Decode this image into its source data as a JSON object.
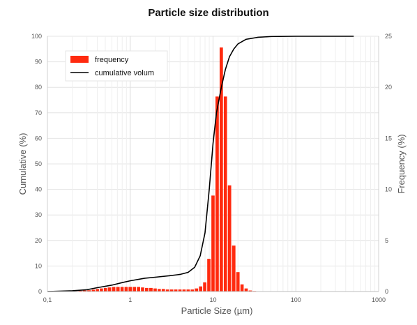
{
  "chart_data": {
    "type": "bar",
    "title": "Particle size distribution",
    "xlabel": "Particle Size (µm)",
    "ylabel_left": "Cumulative (%)",
    "ylabel_right": "Frequency (%)",
    "x_scale": "log",
    "xlim": [
      0.1,
      1000
    ],
    "ylim_left": [
      0,
      100
    ],
    "ylim_right": [
      0,
      25
    ],
    "x_ticks": [
      {
        "value": 0.1,
        "label": "0,1"
      },
      {
        "value": 1,
        "label": "1"
      },
      {
        "value": 10,
        "label": "10"
      },
      {
        "value": 100,
        "label": "100"
      },
      {
        "value": 1000,
        "label": "1000"
      }
    ],
    "y_left_ticks": [
      0,
      10,
      20,
      30,
      40,
      50,
      60,
      70,
      80,
      90,
      100
    ],
    "y_right_ticks": [
      0,
      5,
      10,
      15,
      20,
      25
    ],
    "grid": true,
    "legend_position": "top-left",
    "series": [
      {
        "name": "frequency",
        "type": "bar",
        "axis": "right",
        "color": "#ff2a0f",
        "points": [
          {
            "x": 0.22,
            "y": 0.05
          },
          {
            "x": 0.25,
            "y": 0.08
          },
          {
            "x": 0.28,
            "y": 0.1
          },
          {
            "x": 0.32,
            "y": 0.12
          },
          {
            "x": 0.36,
            "y": 0.18
          },
          {
            "x": 0.4,
            "y": 0.25
          },
          {
            "x": 0.45,
            "y": 0.3
          },
          {
            "x": 0.5,
            "y": 0.35
          },
          {
            "x": 0.56,
            "y": 0.4
          },
          {
            "x": 0.63,
            "y": 0.45
          },
          {
            "x": 0.71,
            "y": 0.45
          },
          {
            "x": 0.8,
            "y": 0.45
          },
          {
            "x": 0.89,
            "y": 0.45
          },
          {
            "x": 1.0,
            "y": 0.45
          },
          {
            "x": 1.12,
            "y": 0.45
          },
          {
            "x": 1.26,
            "y": 0.45
          },
          {
            "x": 1.41,
            "y": 0.4
          },
          {
            "x": 1.58,
            "y": 0.35
          },
          {
            "x": 1.78,
            "y": 0.35
          },
          {
            "x": 2.0,
            "y": 0.3
          },
          {
            "x": 2.24,
            "y": 0.25
          },
          {
            "x": 2.51,
            "y": 0.25
          },
          {
            "x": 2.82,
            "y": 0.2
          },
          {
            "x": 3.16,
            "y": 0.2
          },
          {
            "x": 3.55,
            "y": 0.2
          },
          {
            "x": 3.98,
            "y": 0.2
          },
          {
            "x": 4.47,
            "y": 0.2
          },
          {
            "x": 5.01,
            "y": 0.2
          },
          {
            "x": 5.62,
            "y": 0.2
          },
          {
            "x": 6.31,
            "y": 0.3
          },
          {
            "x": 7.08,
            "y": 0.5
          },
          {
            "x": 7.94,
            "y": 0.9
          },
          {
            "x": 8.91,
            "y": 3.2
          },
          {
            "x": 10.0,
            "y": 9.4
          },
          {
            "x": 11.2,
            "y": 19.1
          },
          {
            "x": 12.6,
            "y": 23.9
          },
          {
            "x": 14.1,
            "y": 19.1
          },
          {
            "x": 15.8,
            "y": 10.4
          },
          {
            "x": 17.8,
            "y": 4.5
          },
          {
            "x": 20.0,
            "y": 1.9
          },
          {
            "x": 22.4,
            "y": 0.7
          },
          {
            "x": 25.1,
            "y": 0.3
          },
          {
            "x": 28.2,
            "y": 0.1
          },
          {
            "x": 31.6,
            "y": 0.05
          },
          {
            "x": 35.5,
            "y": 0.03
          }
        ]
      },
      {
        "name": "cumulative volum",
        "type": "line",
        "axis": "left",
        "color": "#000000",
        "points": [
          {
            "x": 0.1,
            "y": 0
          },
          {
            "x": 0.2,
            "y": 0.3
          },
          {
            "x": 0.3,
            "y": 0.7
          },
          {
            "x": 0.4,
            "y": 1.5
          },
          {
            "x": 0.6,
            "y": 2.5
          },
          {
            "x": 0.8,
            "y": 3.5
          },
          {
            "x": 1.0,
            "y": 4.2
          },
          {
            "x": 1.5,
            "y": 5.2
          },
          {
            "x": 2.0,
            "y": 5.6
          },
          {
            "x": 3.0,
            "y": 6.2
          },
          {
            "x": 4.0,
            "y": 6.7
          },
          {
            "x": 5.0,
            "y": 7.5
          },
          {
            "x": 6.0,
            "y": 9.5
          },
          {
            "x": 7.0,
            "y": 14
          },
          {
            "x": 8.0,
            "y": 23
          },
          {
            "x": 9.0,
            "y": 40
          },
          {
            "x": 10.0,
            "y": 58
          },
          {
            "x": 11.0,
            "y": 70
          },
          {
            "x": 12.6,
            "y": 80
          },
          {
            "x": 14.1,
            "y": 87
          },
          {
            "x": 15.8,
            "y": 92
          },
          {
            "x": 17.8,
            "y": 95
          },
          {
            "x": 20.0,
            "y": 97
          },
          {
            "x": 25.0,
            "y": 98.8
          },
          {
            "x": 35.0,
            "y": 99.6
          },
          {
            "x": 50.0,
            "y": 99.9
          },
          {
            "x": 100,
            "y": 100
          },
          {
            "x": 200,
            "y": 100
          },
          {
            "x": 500,
            "y": 100
          }
        ]
      }
    ]
  }
}
